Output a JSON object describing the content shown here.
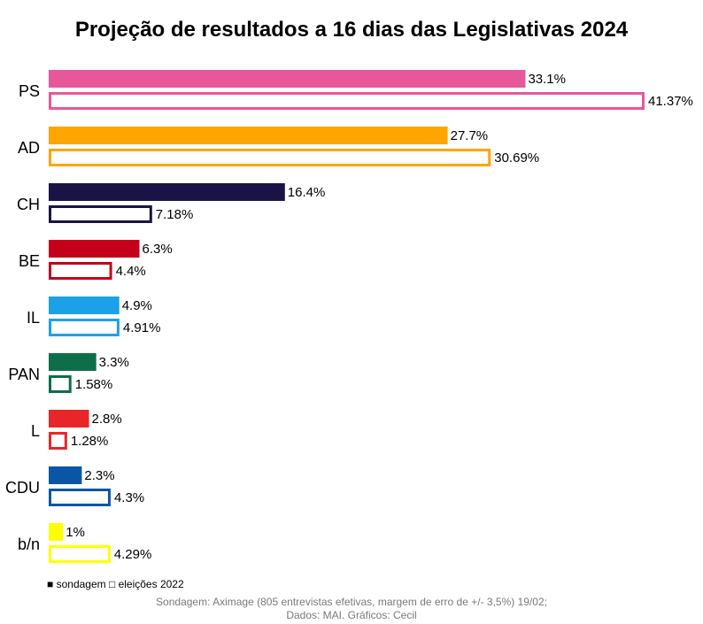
{
  "chart_data": {
    "type": "bar",
    "orientation": "horizontal",
    "title": "Projeção de resultados a 16 dias das Legislativas 2024",
    "categories": [
      "PS",
      "AD",
      "CH",
      "BE",
      "IL",
      "PAN",
      "L",
      "CDU",
      "b/n"
    ],
    "colors": [
      "#e8579a",
      "#ffa500",
      "#1a1446",
      "#c4001a",
      "#1ca0e8",
      "#0f6e4a",
      "#e8262a",
      "#0a56a6",
      "#ffff00"
    ],
    "series": [
      {
        "name": "sondagem",
        "style": "filled",
        "values": [
          33.1,
          27.7,
          16.4,
          6.3,
          4.9,
          3.3,
          2.8,
          2.3,
          1
        ],
        "labels": [
          "33.1%",
          "27.7%",
          "16.4%",
          "6.3%",
          "4.9%",
          "3.3%",
          "2.8%",
          "2.3%",
          "1%"
        ]
      },
      {
        "name": "eleições 2022",
        "style": "outline",
        "values": [
          41.37,
          30.69,
          7.18,
          4.4,
          4.91,
          1.58,
          1.28,
          4.3,
          4.29
        ],
        "labels": [
          "41.37%",
          "30.69%",
          "7.18%",
          "4.4%",
          "4.91%",
          "1.58%",
          "1.28%",
          "4.3%",
          "4.29%"
        ]
      }
    ],
    "xlim": [
      0,
      41.37
    ],
    "grid": false,
    "legend_position": "bottom-left"
  },
  "legend": {
    "filled_symbol": "■",
    "filled_label": "sondagem",
    "outline_symbol": "□",
    "outline_label": "eleições 2022"
  },
  "source": {
    "line1": "Sondagem: Aximage (805 entrevistas efetivas, margem de erro de +/- 3,5%) 19/02;",
    "line2": "Dados: MAI. Gráficos: Cecil"
  }
}
